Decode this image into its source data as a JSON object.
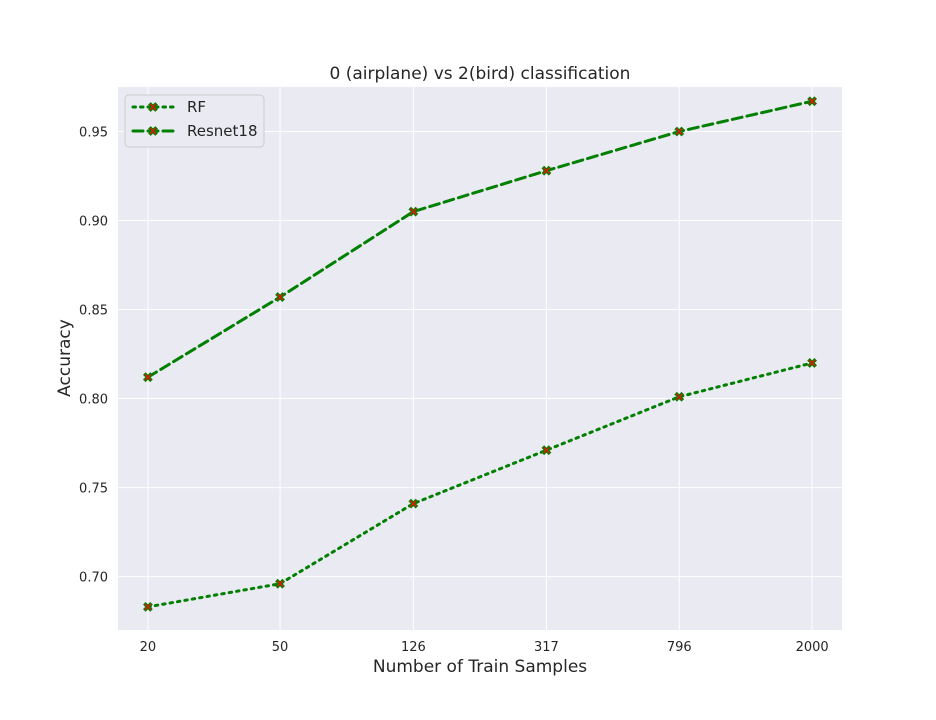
{
  "chart_data": {
    "type": "line",
    "title": "0 (airplane) vs 2(bird) classification",
    "xlabel": "Number of Train Samples",
    "ylabel": "Accuracy",
    "categories": [
      "20",
      "50",
      "126",
      "317",
      "796",
      "2000"
    ],
    "x_scale": "log",
    "ylim": [
      0.67,
      0.975
    ],
    "yticks": [
      "0.70",
      "0.75",
      "0.80",
      "0.85",
      "0.90",
      "0.95"
    ],
    "grid": true,
    "legend_position": "top-left",
    "series": [
      {
        "name": "RF",
        "linestyle": "dotted",
        "color": "#008000",
        "marker_color": "#cc2200",
        "values": [
          0.683,
          0.696,
          0.741,
          0.771,
          0.801,
          0.82
        ]
      },
      {
        "name": "Resnet18",
        "linestyle": "dashed",
        "color": "#008000",
        "marker_color": "#cc2200",
        "values": [
          0.812,
          0.857,
          0.905,
          0.928,
          0.95,
          0.967
        ]
      }
    ],
    "colors": {
      "plot_background": "#eaeaf2",
      "grid": "#ffffff",
      "text": "#262626"
    }
  }
}
